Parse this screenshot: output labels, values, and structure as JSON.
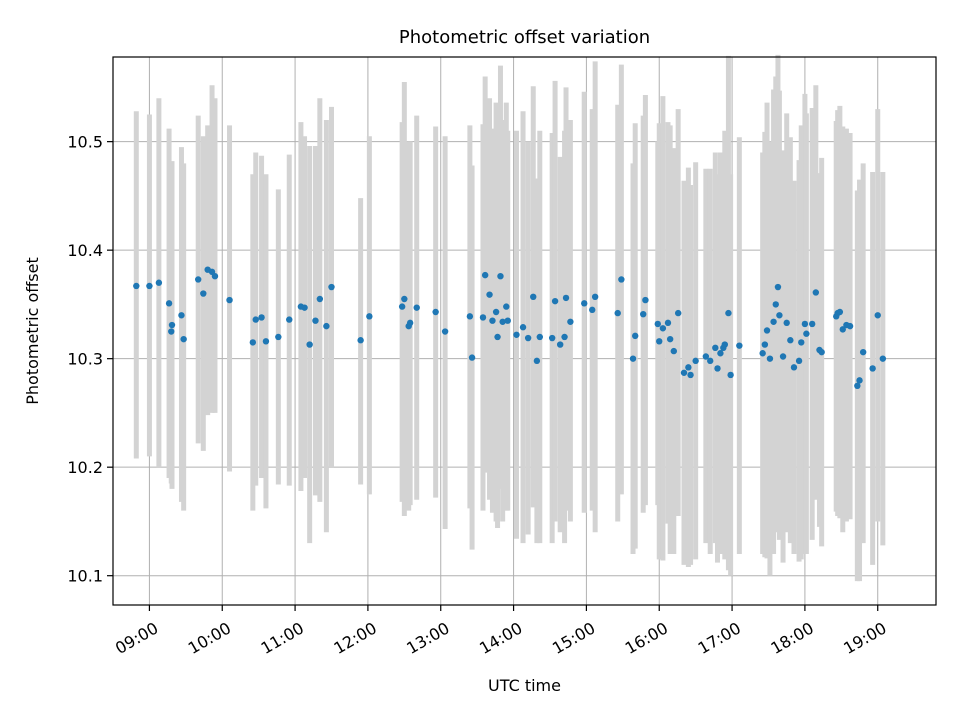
{
  "chart_data": {
    "type": "scatter",
    "title": "Photometric offset variation",
    "xlabel": "UTC time",
    "ylabel": "Photometric offset",
    "x_unit": "hours",
    "xlim": [
      8.5,
      19.8
    ],
    "ylim": [
      10.073,
      10.578
    ],
    "grid": true,
    "x_ticks": [
      {
        "value": 9,
        "label": "09:00"
      },
      {
        "value": 10,
        "label": "10:00"
      },
      {
        "value": 11,
        "label": "11:00"
      },
      {
        "value": 12,
        "label": "12:00"
      },
      {
        "value": 13,
        "label": "13:00"
      },
      {
        "value": 14,
        "label": "14:00"
      },
      {
        "value": 15,
        "label": "15:00"
      },
      {
        "value": 16,
        "label": "16:00"
      },
      {
        "value": 17,
        "label": "17:00"
      },
      {
        "value": 18,
        "label": "18:00"
      },
      {
        "value": 19,
        "label": "19:00"
      }
    ],
    "y_ticks": [
      {
        "value": 10.1,
        "label": "10.1"
      },
      {
        "value": 10.2,
        "label": "10.2"
      },
      {
        "value": 10.3,
        "label": "10.3"
      },
      {
        "value": 10.4,
        "label": "10.4"
      },
      {
        "value": 10.5,
        "label": "10.5"
      }
    ],
    "colors": {
      "point": "#1f77b4",
      "errorbar": "#d3d3d3",
      "grid": "#b0b0b0"
    },
    "series": [
      {
        "x": [
          8.82,
          9.0,
          9.13,
          9.27,
          9.3,
          9.31,
          9.44,
          9.47,
          9.67,
          9.74,
          9.8,
          9.86,
          9.9,
          10.1,
          10.42,
          10.46,
          10.54,
          10.6,
          10.77,
          10.92,
          11.08,
          11.13,
          11.2,
          11.28,
          11.34,
          11.43,
          11.5,
          11.9,
          12.02,
          12.47,
          12.5,
          12.56,
          12.58,
          12.67,
          12.93,
          13.06,
          13.4,
          13.43,
          13.58,
          13.61,
          13.67,
          13.71,
          13.76,
          13.78,
          13.82,
          13.85,
          13.9,
          13.92,
          14.04,
          14.13,
          14.2,
          14.27,
          14.32,
          14.36,
          14.53,
          14.57,
          14.64,
          14.7,
          14.72,
          14.78,
          14.97,
          15.08,
          15.12,
          15.43,
          15.48,
          15.64,
          15.67,
          15.78,
          15.81,
          15.98,
          16.0,
          16.05,
          16.12,
          16.15,
          16.2,
          16.26,
          16.34,
          16.4,
          16.43,
          16.5,
          16.64,
          16.7,
          16.77,
          16.8,
          16.84,
          16.88,
          16.9,
          16.95,
          16.98,
          17.1,
          17.42,
          17.45,
          17.48,
          17.52,
          17.57,
          17.6,
          17.63,
          17.65,
          17.7,
          17.75,
          17.8,
          17.85,
          17.92,
          17.95,
          18.0,
          18.02,
          18.1,
          18.15,
          18.2,
          18.23,
          18.43,
          18.45,
          18.48,
          18.52,
          18.57,
          18.62,
          18.72,
          18.75,
          18.8,
          18.93,
          19.0,
          19.07
        ],
        "y": [
          10.367,
          10.367,
          10.37,
          10.351,
          10.325,
          10.331,
          10.34,
          10.318,
          10.373,
          10.36,
          10.382,
          10.38,
          10.376,
          10.354,
          10.315,
          10.336,
          10.338,
          10.316,
          10.32,
          10.336,
          10.348,
          10.347,
          10.313,
          10.335,
          10.355,
          10.33,
          10.366,
          10.317,
          10.339,
          10.348,
          10.355,
          10.33,
          10.333,
          10.347,
          10.343,
          10.325,
          10.339,
          10.301,
          10.338,
          10.377,
          10.359,
          10.335,
          10.343,
          10.32,
          10.376,
          10.334,
          10.348,
          10.335,
          10.322,
          10.329,
          10.319,
          10.357,
          10.298,
          10.32,
          10.319,
          10.353,
          10.313,
          10.32,
          10.356,
          10.334,
          10.351,
          10.345,
          10.357,
          10.342,
          10.373,
          10.3,
          10.321,
          10.341,
          10.354,
          10.332,
          10.316,
          10.328,
          10.333,
          10.318,
          10.307,
          10.342,
          10.287,
          10.292,
          10.285,
          10.298,
          10.302,
          10.298,
          10.31,
          10.291,
          10.305,
          10.31,
          10.313,
          10.342,
          10.285,
          10.312,
          10.305,
          10.313,
          10.326,
          10.3,
          10.334,
          10.35,
          10.366,
          10.34,
          10.302,
          10.333,
          10.317,
          10.292,
          10.298,
          10.315,
          10.332,
          10.323,
          10.332,
          10.361,
          10.308,
          10.306,
          10.339,
          10.342,
          10.343,
          10.327,
          10.331,
          10.33,
          10.275,
          10.28,
          10.306,
          10.291,
          10.34,
          10.3
        ],
        "err_low": [
          10.208,
          10.21,
          10.2,
          10.19,
          10.185,
          10.18,
          10.168,
          10.16,
          10.222,
          10.215,
          10.248,
          10.25,
          10.25,
          10.196,
          10.16,
          10.183,
          10.19,
          10.162,
          10.184,
          10.183,
          10.178,
          10.19,
          10.13,
          10.174,
          10.168,
          10.14,
          10.2,
          10.184,
          10.175,
          10.168,
          10.155,
          10.16,
          10.165,
          10.17,
          10.172,
          10.143,
          10.162,
          10.124,
          10.16,
          10.195,
          10.17,
          10.158,
          10.15,
          10.144,
          10.18,
          10.15,
          10.16,
          10.16,
          10.134,
          10.13,
          10.138,
          10.163,
          10.13,
          10.13,
          10.13,
          10.15,
          10.14,
          10.13,
          10.16,
          10.15,
          10.158,
          10.16,
          10.14,
          10.15,
          10.175,
          10.12,
          10.125,
          10.158,
          10.165,
          10.165,
          10.115,
          10.114,
          10.148,
          10.12,
          10.12,
          10.155,
          10.11,
          10.108,
          10.11,
          10.115,
          10.13,
          10.12,
          10.13,
          10.112,
          10.12,
          10.135,
          10.115,
          10.105,
          10.1,
          10.12,
          10.12,
          10.117,
          10.116,
          10.1,
          10.12,
          10.14,
          10.152,
          10.133,
          10.112,
          10.14,
          10.13,
          10.12,
          10.113,
          10.115,
          10.12,
          10.12,
          10.133,
          10.17,
          10.145,
          10.127,
          10.159,
          10.155,
          10.153,
          10.14,
          10.15,
          10.152,
          10.095,
          10.095,
          10.13,
          10.11,
          10.15,
          10.128
        ],
        "err_high": [
          10.528,
          10.525,
          10.54,
          10.512,
          10.465,
          10.482,
          10.495,
          10.48,
          10.524,
          10.505,
          10.515,
          10.552,
          10.54,
          10.515,
          10.47,
          10.49,
          10.487,
          10.47,
          10.456,
          10.488,
          10.518,
          10.505,
          10.496,
          10.496,
          10.54,
          10.52,
          10.532,
          10.448,
          10.505,
          10.518,
          10.555,
          10.5,
          10.5,
          10.524,
          10.514,
          10.505,
          10.515,
          10.478,
          10.516,
          10.56,
          10.54,
          10.512,
          10.536,
          10.496,
          10.57,
          10.52,
          10.536,
          10.51,
          10.51,
          10.528,
          10.5,
          10.551,
          10.466,
          10.51,
          10.508,
          10.556,
          10.486,
          10.51,
          10.55,
          10.52,
          10.546,
          10.53,
          10.574,
          10.534,
          10.571,
          10.48,
          10.517,
          10.524,
          10.543,
          10.5,
          10.517,
          10.542,
          10.518,
          10.515,
          10.494,
          10.53,
          10.464,
          10.476,
          10.46,
          10.481,
          10.475,
          10.475,
          10.49,
          10.47,
          10.49,
          10.485,
          10.51,
          10.579,
          10.47,
          10.504,
          10.49,
          10.509,
          10.536,
          10.5,
          10.548,
          10.56,
          10.58,
          10.547,
          10.492,
          10.526,
          10.504,
          10.464,
          10.483,
          10.515,
          10.544,
          10.526,
          10.531,
          10.552,
          10.471,
          10.485,
          10.519,
          10.529,
          10.533,
          10.514,
          10.512,
          10.508,
          10.455,
          10.465,
          10.48,
          10.472,
          10.53,
          10.472
        ]
      }
    ]
  }
}
